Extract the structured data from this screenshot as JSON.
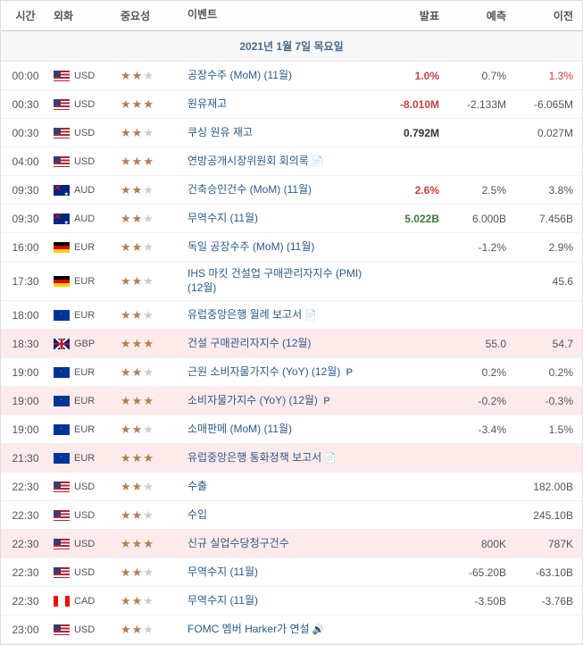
{
  "headers": {
    "time": "시간",
    "currency": "외화",
    "importance": "중요성",
    "event": "이벤트",
    "actual": "발표",
    "forecast": "예측",
    "previous": "이전"
  },
  "date_header": "2021년 1월 7일 목요일",
  "rows": [
    {
      "time": "00:00",
      "cur": "USD",
      "flag": "usd",
      "imp": 2,
      "event": "공장수주 (MoM) (11월)",
      "actual": "1.0%",
      "actual_cls": "neg",
      "forecast": "0.7%",
      "previous": "1.3%",
      "prev_cls": "neg",
      "hl": false
    },
    {
      "time": "00:30",
      "cur": "USD",
      "flag": "usd",
      "imp": 3,
      "event": "원유재고",
      "actual": "-8.010M",
      "actual_cls": "neg",
      "forecast": "-2.133M",
      "previous": "-6.065M",
      "hl": false
    },
    {
      "time": "00:30",
      "cur": "USD",
      "flag": "usd",
      "imp": 2,
      "event": "쿠싱 원유 재고",
      "actual": "0.792M",
      "actual_cls": "",
      "forecast": "",
      "previous": "0.027M",
      "hl": false
    },
    {
      "time": "04:00",
      "cur": "USD",
      "flag": "usd",
      "imp": 3,
      "event": "연방공개시장위원회 회의록",
      "icon": "doc",
      "actual": "",
      "forecast": "",
      "previous": "",
      "hl": false
    },
    {
      "time": "09:30",
      "cur": "AUD",
      "flag": "aud",
      "imp": 2,
      "event": "건축승인건수 (MoM) (11월)",
      "actual": "2.6%",
      "actual_cls": "neg",
      "forecast": "2.5%",
      "previous": "3.8%",
      "hl": false
    },
    {
      "time": "09:30",
      "cur": "AUD",
      "flag": "aud",
      "imp": 2,
      "event": "무역수지 (11월)",
      "actual": "5.022B",
      "actual_cls": "pos",
      "forecast": "6.000B",
      "previous": "7.456B",
      "hl": false
    },
    {
      "time": "16:00",
      "cur": "EUR",
      "flag": "ger",
      "imp": 2,
      "event": "독일 공장수주 (MoM) (11월)",
      "actual": "",
      "forecast": "-1.2%",
      "previous": "2.9%",
      "hl": false
    },
    {
      "time": "17:30",
      "cur": "EUR",
      "flag": "ger",
      "imp": 2,
      "event": "IHS 마킷 건설업 구매관리자지수 (PMI) (12월)",
      "actual": "",
      "forecast": "",
      "previous": "45.6",
      "hl": false
    },
    {
      "time": "18:00",
      "cur": "EUR",
      "flag": "eur",
      "imp": 2,
      "event": "유럽중앙은행 월례 보고서",
      "icon": "doc",
      "actual": "",
      "forecast": "",
      "previous": "",
      "hl": false
    },
    {
      "time": "18:30",
      "cur": "GBP",
      "flag": "gbp",
      "imp": 3,
      "event": "건설 구매관리자지수 (12월)",
      "actual": "",
      "forecast": "55.0",
      "previous": "54.7",
      "hl": true
    },
    {
      "time": "19:00",
      "cur": "EUR",
      "flag": "eur",
      "imp": 2,
      "event": "근원 소비자물가지수 (YoY) (12월)",
      "pmarker": true,
      "actual": "",
      "forecast": "0.2%",
      "previous": "0.2%",
      "hl": false
    },
    {
      "time": "19:00",
      "cur": "EUR",
      "flag": "eur",
      "imp": 3,
      "event": "소비자물가지수 (YoY) (12월)",
      "pmarker": true,
      "actual": "",
      "forecast": "-0.2%",
      "previous": "-0.3%",
      "hl": true
    },
    {
      "time": "19:00",
      "cur": "EUR",
      "flag": "eur",
      "imp": 2,
      "event": "소매판메 (MoM) (11월)",
      "actual": "",
      "forecast": "-3.4%",
      "previous": "1.5%",
      "hl": false
    },
    {
      "time": "21:30",
      "cur": "EUR",
      "flag": "eur",
      "imp": 3,
      "event": "유럽중앙은행 통화정책 보고서",
      "icon": "doc",
      "actual": "",
      "forecast": "",
      "previous": "",
      "hl": true
    },
    {
      "time": "22:30",
      "cur": "USD",
      "flag": "usd",
      "imp": 2,
      "event": "수출",
      "actual": "",
      "forecast": "",
      "previous": "182.00B",
      "hl": false
    },
    {
      "time": "22:30",
      "cur": "USD",
      "flag": "usd",
      "imp": 2,
      "event": "수입",
      "actual": "",
      "forecast": "",
      "previous": "245.10B",
      "hl": false
    },
    {
      "time": "22:30",
      "cur": "USD",
      "flag": "usd",
      "imp": 3,
      "event": "신규 실업수당청구건수",
      "actual": "",
      "forecast": "800K",
      "previous": "787K",
      "hl": true
    },
    {
      "time": "22:30",
      "cur": "USD",
      "flag": "usd",
      "imp": 2,
      "event": "무역수지 (11월)",
      "actual": "",
      "forecast": "-65.20B",
      "previous": "-63.10B",
      "hl": false
    },
    {
      "time": "22:30",
      "cur": "CAD",
      "flag": "cad",
      "imp": 2,
      "event": "무역수지 (11월)",
      "actual": "",
      "forecast": "-3.50B",
      "previous": "-3.76B",
      "hl": false
    },
    {
      "time": "23:00",
      "cur": "USD",
      "flag": "usd",
      "imp": 2,
      "event": "FOMC 멤버 Harker가 연설",
      "icon": "spk",
      "actual": "",
      "forecast": "",
      "previous": "",
      "hl": false
    }
  ]
}
